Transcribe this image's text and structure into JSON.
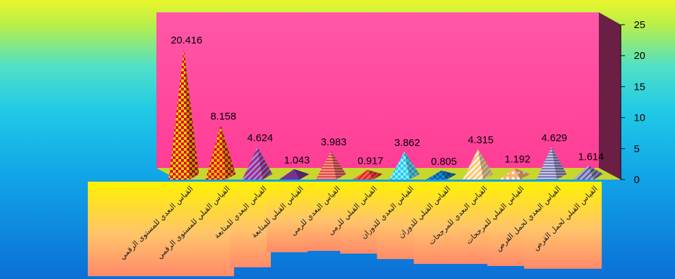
{
  "chart_data": {
    "type": "bar",
    "style": "3d-pyramid",
    "categories": [
      "القياس البعدي للمستوى الرقمي",
      "القياس القبلي للمستوى الرقمي",
      "القياس البعدي للمتابعة",
      "القياس القبلي للمتابعة",
      "القياس البعدي للرمى",
      "القياس القبلي للرمى",
      "القياس البعدي للدوران",
      "القياس القبلي للدوران",
      "القياس البعدي للمرجحات",
      "القياس القبلي للمرجحات",
      "القياس البعدي لحمل القرص",
      "القياس القبلي لحمل القرص"
    ],
    "values": [
      20.416,
      8.158,
      4.624,
      1.043,
      3.983,
      0.917,
      3.862,
      0.805,
      4.315,
      1.192,
      4.629,
      1.614
    ],
    "value_labels": [
      "20.416",
      "8.158",
      "4.624",
      "1.043",
      "3.983",
      "0.917",
      "3.862",
      "0.805",
      "4.315",
      "1.192",
      "4.629",
      "1.614"
    ],
    "ylim": [
      0,
      25
    ],
    "yticks": [
      0,
      5,
      10,
      15,
      20,
      25
    ],
    "y_axis_side": "right",
    "title": "",
    "xlabel": "",
    "ylabel": "",
    "grid": false,
    "legend": "none",
    "colors": {
      "plot_wall": "#ff4fa3",
      "side_wall": "#6b1f45",
      "floor": "#c8d62e",
      "pyramid_fills": [
        "#f4d400",
        "#f0c000",
        "#b42a82",
        "#8b2a8b",
        "#ff9a7a",
        "#ff5a4a",
        "#2ec8ef",
        "#1590d8",
        "#ffc878",
        "#ffb070",
        "#c8c8dc",
        "#a8a8c8"
      ],
      "pyramid_patterns": [
        "#e0002a",
        "#e0102a",
        "#7fb0ff",
        "#2050c0",
        "#d02a4a",
        "#d02020",
        "#88f0ff",
        "#0a5aa8",
        "#ffffff",
        "#ffffff",
        "#5a5ab0",
        "#5050a0"
      ]
    }
  }
}
